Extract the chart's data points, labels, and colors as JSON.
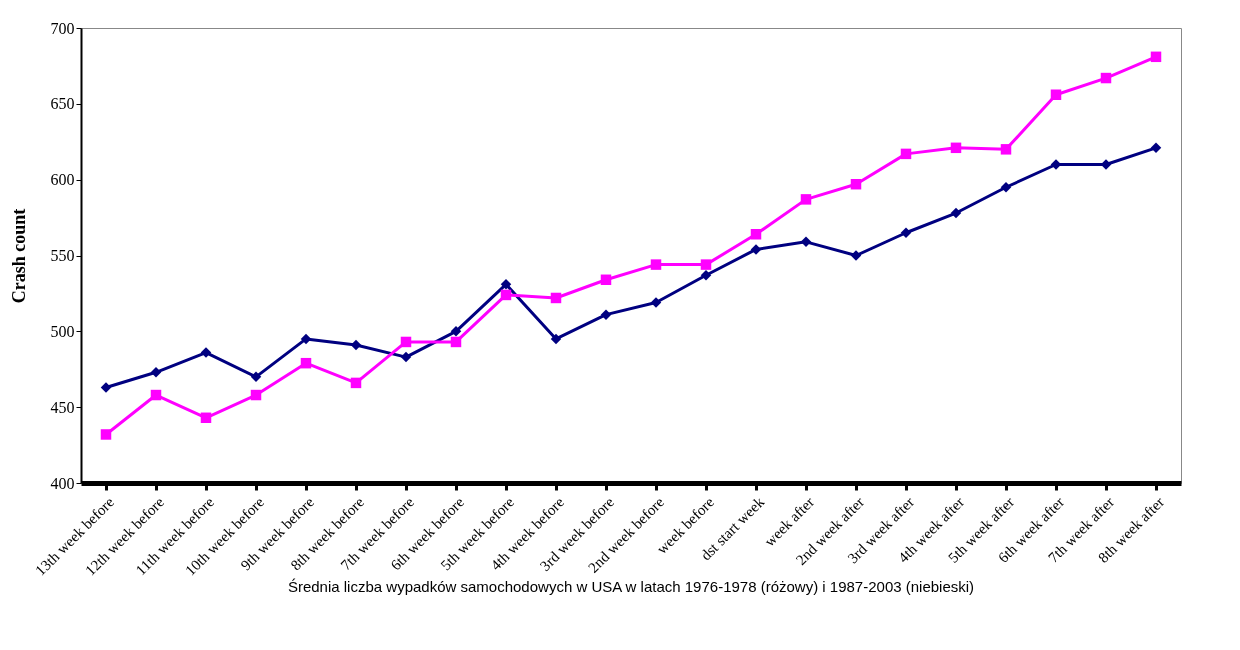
{
  "chart_data": {
    "type": "line",
    "ylabel": "Crash count",
    "categories": [
      "13th week before",
      "12th week before",
      "11th week before",
      "10th week before",
      "9th week before",
      "8th week before",
      "7th week before",
      "6th week before",
      "5th week before",
      "4th week before",
      "3rd week before",
      "2nd week before",
      "week before",
      "dst start week",
      "week after",
      "2nd week after",
      "3rd week after",
      "4th week after",
      "5th week after",
      "6th week after",
      "7th week after",
      "8th week after"
    ],
    "series": [
      {
        "color": "#000080",
        "marker": "diamond",
        "values": [
          463,
          473,
          486,
          470,
          495,
          491,
          483,
          500,
          531,
          495,
          511,
          519,
          537,
          554,
          559,
          550,
          565,
          578,
          595,
          610,
          610,
          621
        ]
      },
      {
        "color": "#ff00ff",
        "marker": "square",
        "values": [
          432,
          458,
          443,
          458,
          479,
          466,
          493,
          493,
          524,
          522,
          534,
          544,
          544,
          564,
          587,
          597,
          617,
          621,
          620,
          656,
          667,
          681
        ]
      }
    ],
    "ylim": [
      400,
      700
    ],
    "yticks": [
      400,
      450,
      500,
      550,
      600,
      650,
      700
    ],
    "grid": false,
    "legend": false,
    "annotations": [
      "Średnia liczba wypadków samochodowych w USA w latach 1976-1978 (różowy) i 1987-2003 (niebieski)"
    ]
  }
}
